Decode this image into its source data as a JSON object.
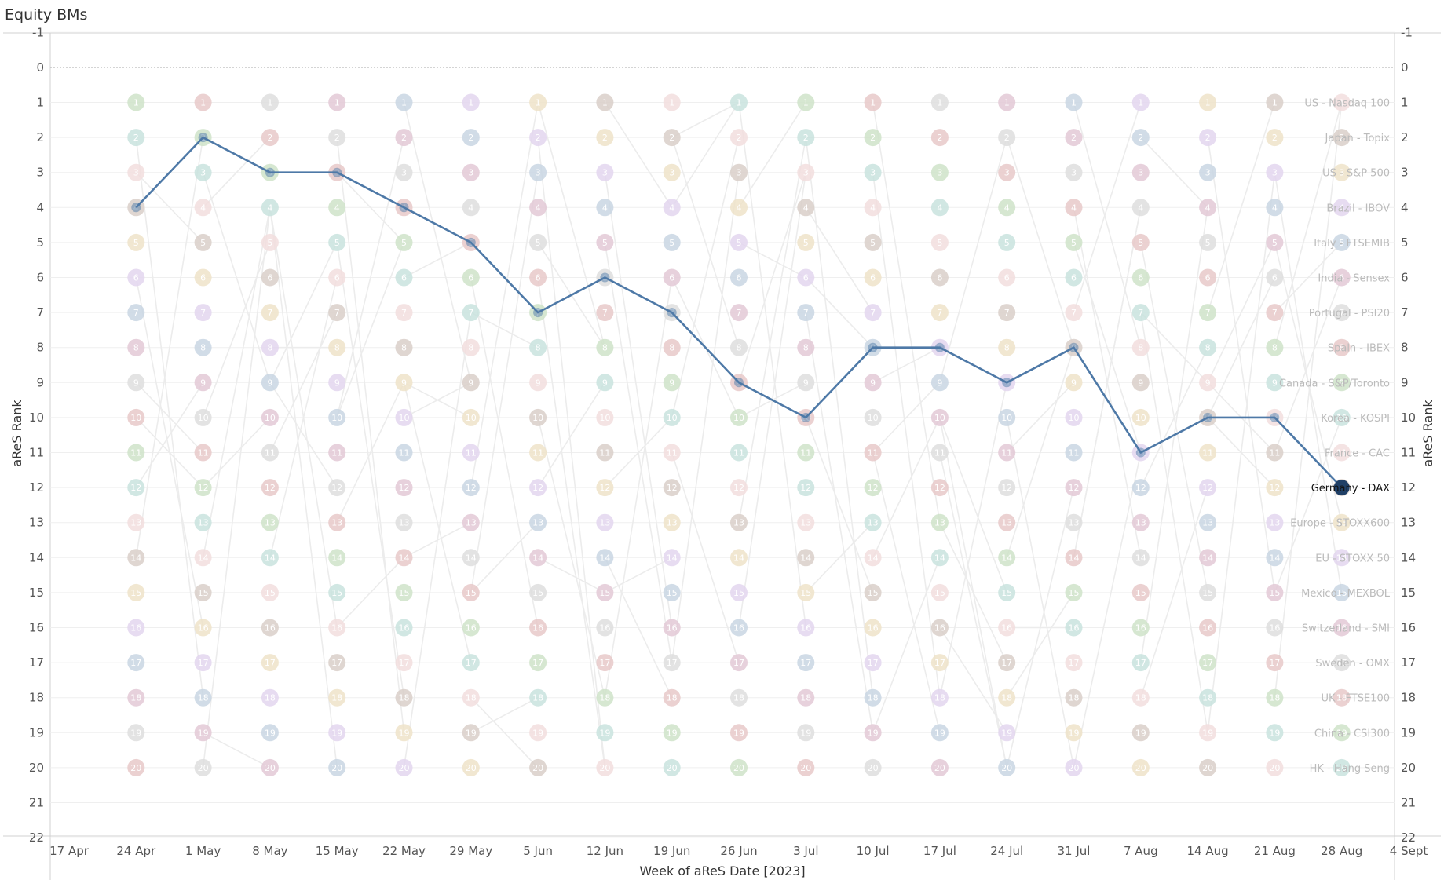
{
  "title": "Equity BMs",
  "chart_data": {
    "type": "line",
    "title": "Equity BMs",
    "xlabel": "Week of aReS Date [2023]",
    "ylabel_left": "aReS Rank",
    "ylabel_right": "aReS Rank",
    "y_ticks": [
      -1,
      0,
      1,
      2,
      3,
      4,
      5,
      6,
      7,
      8,
      9,
      10,
      11,
      12,
      13,
      14,
      15,
      16,
      17,
      18,
      19,
      20,
      21,
      22
    ],
    "ylim": [
      -1,
      22
    ],
    "y_reversed": true,
    "x_ticks": [
      "17 Apr",
      "24 Apr",
      "1 May",
      "8 May",
      "15 May",
      "22 May",
      "29 May",
      "5 Jun",
      "12 Jun",
      "19 Jun",
      "26 Jun",
      "3 Jul",
      "10 Jul",
      "17 Jul",
      "24 Jul",
      "31 Jul",
      "7 Aug",
      "14 Aug",
      "21 Aug",
      "28 Aug",
      "4 Sept"
    ],
    "x": [
      "24 Apr",
      "1 May",
      "8 May",
      "15 May",
      "22 May",
      "29 May",
      "5 Jun",
      "12 Jun",
      "19 Jun",
      "26 Jun",
      "3 Jul",
      "10 Jul",
      "17 Jul",
      "24 Jul",
      "31 Jul",
      "7 Aug",
      "14 Aug",
      "21 Aug",
      "28 Aug"
    ],
    "ranks_per_week": [
      1,
      2,
      3,
      4,
      5,
      6,
      7,
      8,
      9,
      10,
      11,
      12,
      13,
      14,
      15,
      16,
      17,
      18,
      19,
      20
    ],
    "highlight_series": {
      "name": "Germany - DAX",
      "values": [
        4,
        2,
        3,
        3,
        4,
        5,
        7,
        6,
        7,
        9,
        10,
        8,
        8,
        9,
        8,
        11,
        10,
        10,
        12
      ],
      "color": "#4e79a7"
    },
    "end_labels": [
      {
        "rank": 1,
        "label": "US - Nasdaq 100"
      },
      {
        "rank": 2,
        "label": "Japan - Topix"
      },
      {
        "rank": 3,
        "label": "US - S&P 500"
      },
      {
        "rank": 4,
        "label": "Brazil - IBOV"
      },
      {
        "rank": 5,
        "label": "Italy - FTSEMIB"
      },
      {
        "rank": 6,
        "label": "India - Sensex"
      },
      {
        "rank": 7,
        "label": "Portugal - PSI20"
      },
      {
        "rank": 8,
        "label": "Spain - IBEX"
      },
      {
        "rank": 9,
        "label": "Canada - S&P/Toronto"
      },
      {
        "rank": 10,
        "label": "Korea - KOSPI"
      },
      {
        "rank": 11,
        "label": "France - CAC"
      },
      {
        "rank": 12,
        "label": "Germany - DAX"
      },
      {
        "rank": 13,
        "label": "Europe - STOXX600"
      },
      {
        "rank": 14,
        "label": "EU - STOXX 50"
      },
      {
        "rank": 15,
        "label": "Mexico - MEXBOL"
      },
      {
        "rank": 16,
        "label": "Switzerland - SMI"
      },
      {
        "rank": 17,
        "label": "Sweden - OMX"
      },
      {
        "rank": 18,
        "label": "UK - FTSE100"
      },
      {
        "rank": 19,
        "label": "China - CSI300"
      },
      {
        "rank": 20,
        "label": "HK - Hang Seng"
      }
    ],
    "background_palette": [
      "#e8c9c9",
      "#c9d6e3",
      "#d9cfc9",
      "#cfe3c9",
      "#e3c9d6",
      "#efe3c9",
      "#c9e3de",
      "#dedede",
      "#e3d6ef",
      "#f2dede"
    ],
    "grid": true
  }
}
